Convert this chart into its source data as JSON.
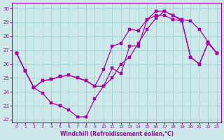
{
  "xlabel": "Windchill (Refroidissement éolien,°C)",
  "background_color": "#cce8e8",
  "line_color": "#aa00aa",
  "grid_color": "#99cccc",
  "xlim": [
    -0.5,
    23.5
  ],
  "ylim": [
    21.8,
    30.4
  ],
  "xticks": [
    0,
    1,
    2,
    3,
    4,
    5,
    6,
    7,
    8,
    9,
    10,
    11,
    12,
    13,
    14,
    15,
    16,
    17,
    18,
    19,
    20,
    21,
    22,
    23
  ],
  "yticks": [
    22,
    23,
    24,
    25,
    26,
    27,
    28,
    29,
    30
  ],
  "hours": [
    0,
    1,
    2,
    3,
    4,
    5,
    6,
    7,
    8,
    9,
    10,
    11,
    12,
    13,
    14,
    15,
    16,
    17,
    18,
    19,
    20,
    21,
    22,
    23
  ],
  "line1": [
    26.8,
    25.5,
    24.3,
    23.9,
    23.2,
    23.0,
    22.7,
    22.2,
    22.2,
    23.5,
    24.4,
    25.7,
    25.3,
    27.3,
    27.3,
    29.2,
    29.8,
    29.8,
    29.5,
    29.2,
    29.1,
    28.5,
    27.6,
    26.8
  ],
  "line2": [
    26.8,
    25.5,
    24.3,
    24.8,
    24.9,
    25.1,
    25.2,
    25.0,
    24.8,
    24.4,
    25.6,
    27.3,
    27.5,
    28.5,
    28.4,
    29.2,
    29.5,
    29.5,
    29.2,
    29.1,
    26.5,
    26.0,
    27.5,
    26.8
  ],
  "line3": [
    26.8,
    25.5,
    24.3,
    24.8,
    24.9,
    25.1,
    25.2,
    25.0,
    24.8,
    24.4,
    24.4,
    25.0,
    26.0,
    26.5,
    27.5,
    28.5,
    29.3,
    29.8,
    29.5,
    29.1,
    26.5,
    26.0,
    27.5,
    26.8
  ]
}
